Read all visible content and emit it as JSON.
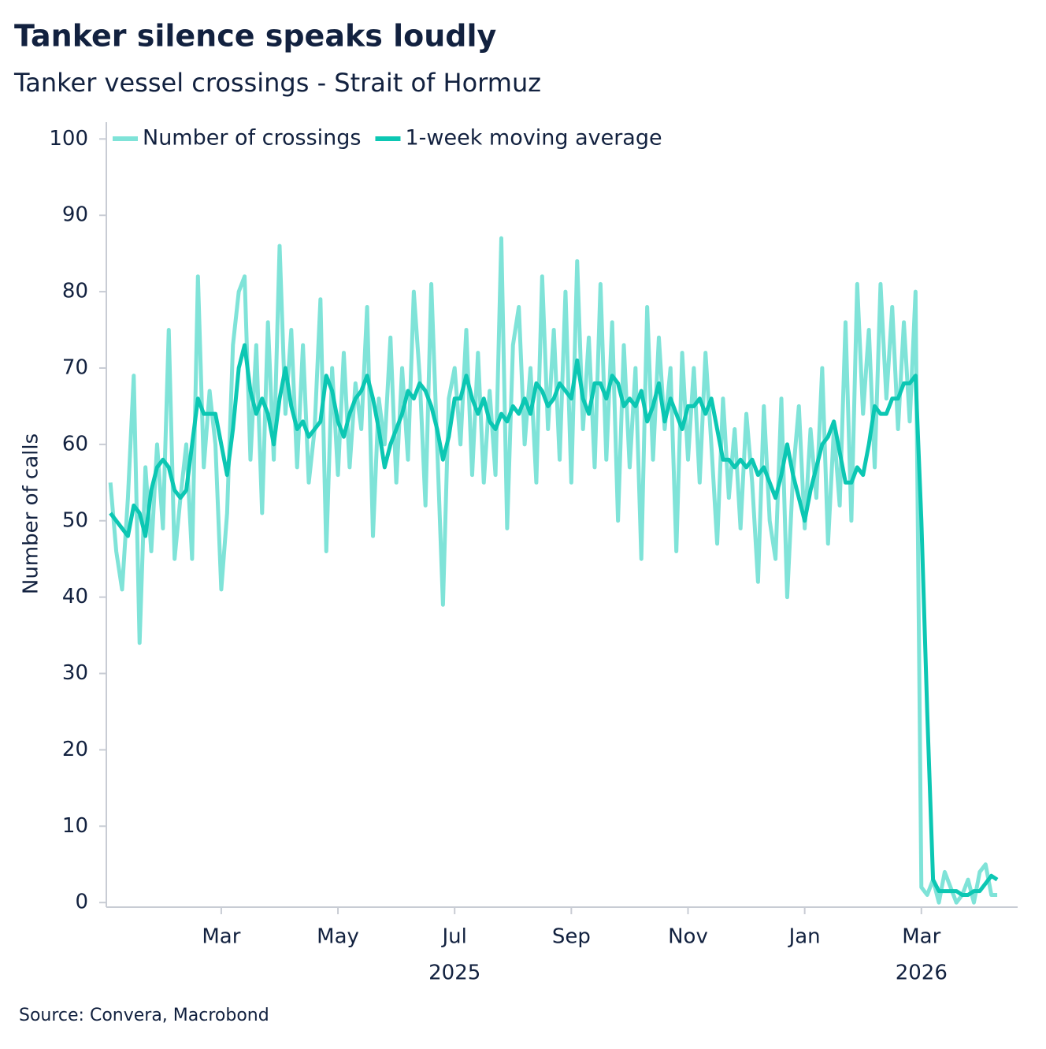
{
  "chart_data": {
    "type": "line",
    "title": "Tanker silence speaks loudly",
    "subtitle": "Tanker vessel crossings - Strait of Hormuz",
    "y_label": "Number of calls",
    "source": "Source: Convera, Macrobond",
    "xlim": [
      0.03,
      15.65
    ],
    "xticks": [
      {
        "value": 2,
        "label": "Mar"
      },
      {
        "value": 4,
        "label": "May"
      },
      {
        "value": 6,
        "label": "Jul"
      },
      {
        "value": 8,
        "label": "Sep"
      },
      {
        "value": 10,
        "label": "Nov"
      },
      {
        "value": 12,
        "label": "Jan"
      },
      {
        "value": 14,
        "label": "Mar"
      }
    ],
    "year_labels": [
      {
        "value": 6,
        "label": "2025"
      },
      {
        "value": 14,
        "label": "2026"
      }
    ],
    "ylim": [
      -0.6,
      102.2
    ],
    "yticks": [
      0,
      10,
      20,
      30,
      40,
      50,
      60,
      70,
      80,
      90,
      100
    ],
    "legend": "top-left",
    "x": [
      0.1,
      0.2,
      0.3,
      0.4,
      0.5,
      0.6,
      0.7,
      0.8,
      0.9,
      1.0,
      1.1,
      1.2,
      1.3,
      1.4,
      1.5,
      1.6,
      1.7,
      1.8,
      1.9,
      2.0,
      2.1,
      2.2,
      2.3,
      2.4,
      2.5,
      2.6,
      2.7,
      2.8,
      2.9,
      3.0,
      3.1,
      3.2,
      3.3,
      3.4,
      3.5,
      3.6,
      3.7,
      3.8,
      3.9,
      4.0,
      4.1,
      4.2,
      4.3,
      4.4,
      4.5,
      4.6,
      4.7,
      4.8,
      4.9,
      5.0,
      5.1,
      5.2,
      5.3,
      5.4,
      5.5,
      5.6,
      5.7,
      5.8,
      5.9,
      6.0,
      6.1,
      6.2,
      6.3,
      6.4,
      6.5,
      6.6,
      6.7,
      6.8,
      6.9,
      7.0,
      7.1,
      7.2,
      7.3,
      7.4,
      7.5,
      7.6,
      7.7,
      7.8,
      7.9,
      8.0,
      8.1,
      8.2,
      8.3,
      8.4,
      8.5,
      8.6,
      8.7,
      8.8,
      8.9,
      9.0,
      9.1,
      9.2,
      9.3,
      9.4,
      9.5,
      9.6,
      9.7,
      9.8,
      9.9,
      10.0,
      10.1,
      10.2,
      10.3,
      10.4,
      10.5,
      10.6,
      10.7,
      10.8,
      10.9,
      11.0,
      11.1,
      11.2,
      11.3,
      11.4,
      11.5,
      11.6,
      11.7,
      11.8,
      11.9,
      12.0,
      12.1,
      12.2,
      12.3,
      12.4,
      12.5,
      12.6,
      12.7,
      12.8,
      12.9,
      13.0,
      13.1,
      13.2,
      13.3,
      13.4,
      13.5,
      13.6,
      13.7,
      13.8,
      13.9,
      14.0,
      14.1,
      14.2,
      14.3,
      14.4,
      14.5,
      14.6,
      14.7,
      14.8,
      14.9,
      15.0,
      15.1,
      15.2,
      15.3
    ],
    "series": [
      {
        "name": "Number of crossings",
        "color": "#7fe3d8",
        "width": 5,
        "values": [
          55,
          46,
          41,
          53,
          69,
          34,
          57,
          46,
          60,
          49,
          75,
          45,
          53,
          60,
          45,
          82,
          57,
          67,
          60,
          41,
          51,
          73,
          80,
          82,
          58,
          73,
          51,
          76,
          58,
          86,
          64,
          75,
          57,
          73,
          55,
          62,
          79,
          46,
          70,
          56,
          72,
          57,
          68,
          62,
          78,
          48,
          66,
          60,
          74,
          55,
          70,
          58,
          80,
          69,
          52,
          81,
          60,
          39,
          66,
          70,
          60,
          75,
          56,
          72,
          55,
          67,
          56,
          87,
          49,
          73,
          78,
          60,
          70,
          55,
          82,
          62,
          75,
          58,
          80,
          55,
          84,
          62,
          74,
          57,
          81,
          58,
          76,
          50,
          73,
          57,
          70,
          45,
          78,
          58,
          74,
          62,
          70,
          46,
          72,
          58,
          70,
          55,
          72,
          60,
          47,
          66,
          53,
          62,
          49,
          64,
          55,
          42,
          65,
          50,
          45,
          66,
          40,
          56,
          65,
          49,
          62,
          53,
          70,
          47,
          62,
          52,
          76,
          50,
          81,
          64,
          75,
          57,
          81,
          66,
          78,
          62,
          76,
          63,
          80,
          2,
          1,
          3,
          0,
          4,
          2,
          0,
          1,
          3,
          0,
          4,
          5,
          1,
          1
        ]
      },
      {
        "name": "1-week moving average",
        "color": "#0cc7b3",
        "width": 5,
        "values": [
          51,
          50,
          49,
          48,
          52,
          51,
          48,
          54,
          57,
          58,
          57,
          54,
          53,
          54,
          60,
          66,
          64,
          64,
          64,
          60,
          56,
          62,
          70,
          73,
          67,
          64,
          66,
          64,
          60,
          66,
          70,
          65,
          62,
          63,
          61,
          62,
          63,
          69,
          67,
          63,
          61,
          64,
          66,
          67,
          69,
          66,
          62,
          57,
          60,
          62,
          64,
          67,
          66,
          68,
          67,
          65,
          62,
          58,
          61,
          66,
          66,
          69,
          66,
          64,
          66,
          63,
          62,
          64,
          63,
          65,
          64,
          66,
          64,
          68,
          67,
          65,
          66,
          68,
          67,
          66,
          71,
          66,
          64,
          68,
          68,
          66,
          69,
          68,
          65,
          66,
          65,
          67,
          63,
          65,
          68,
          63,
          66,
          64,
          62,
          65,
          65,
          66,
          64,
          66,
          62,
          58,
          58,
          57,
          58,
          57,
          58,
          56,
          57,
          55,
          53,
          56,
          60,
          56,
          53,
          50,
          54,
          57,
          60,
          61,
          63,
          59,
          55,
          55,
          57,
          56,
          60,
          65,
          64,
          64,
          66,
          66,
          68,
          68,
          69,
          50,
          25,
          3,
          1.5,
          1.5,
          1.5,
          1.5,
          1,
          1,
          1.5,
          1.5,
          2.5,
          3.5,
          3
        ]
      }
    ]
  }
}
